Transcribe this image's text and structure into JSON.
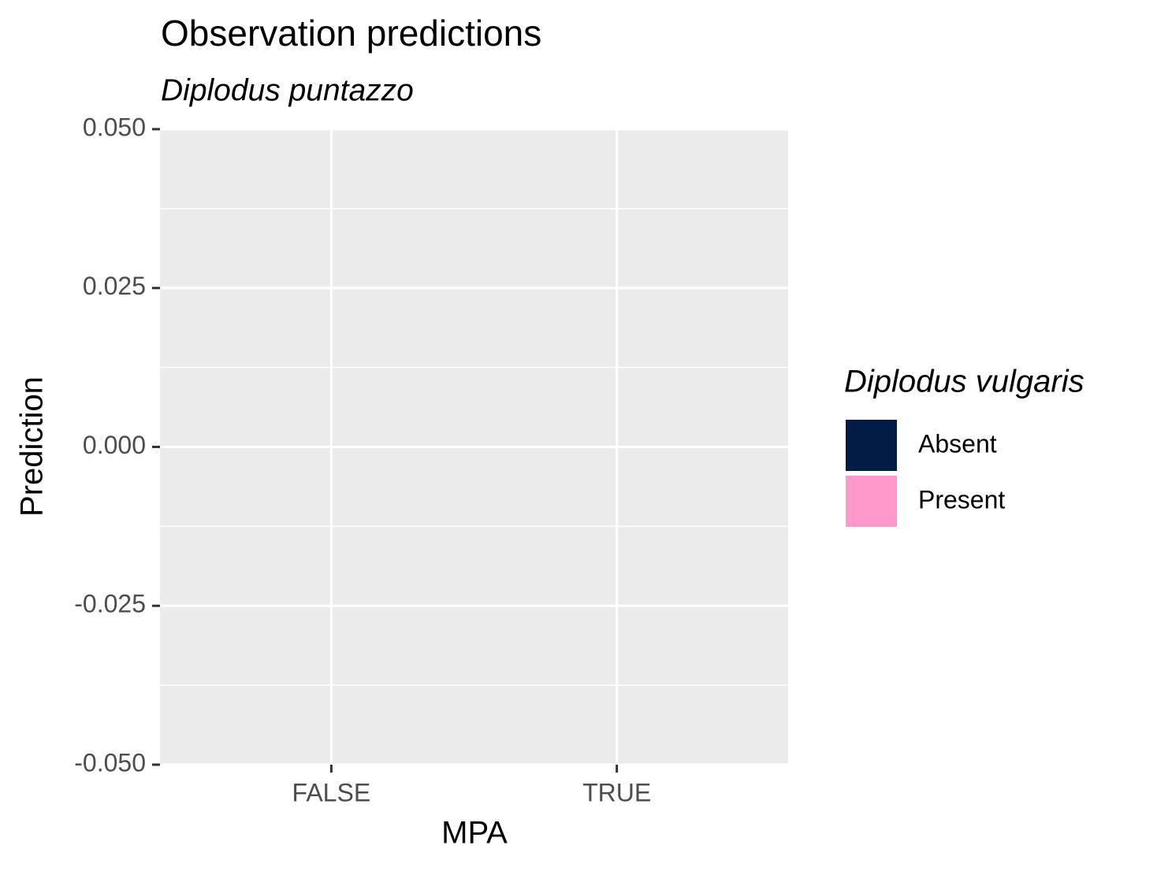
{
  "chart_data": {
    "type": "bar",
    "title": "Observation predictions",
    "subtitle": "Diplodus puntazzo",
    "x_label": "MPA",
    "y_label": "Prediction",
    "legend_title": "Diplodus vulgaris",
    "categories": [
      "FALSE",
      "TRUE"
    ],
    "series": [
      {
        "name": "Absent",
        "color": "#031c45",
        "values": [
          null,
          null
        ]
      },
      {
        "name": "Present",
        "color": "#ff99cc",
        "values": [
          null,
          null
        ]
      }
    ],
    "ylim": [
      -0.05,
      0.05
    ],
    "yticks": [
      {
        "value": -0.05,
        "label": "-0.050"
      },
      {
        "value": -0.025,
        "label": "-0.025"
      },
      {
        "value": 0,
        "label": "0.000"
      },
      {
        "value": 0.025,
        "label": "0.025"
      },
      {
        "value": 0.05,
        "label": "0.050"
      }
    ],
    "grid": true,
    "legend_position": "right"
  }
}
